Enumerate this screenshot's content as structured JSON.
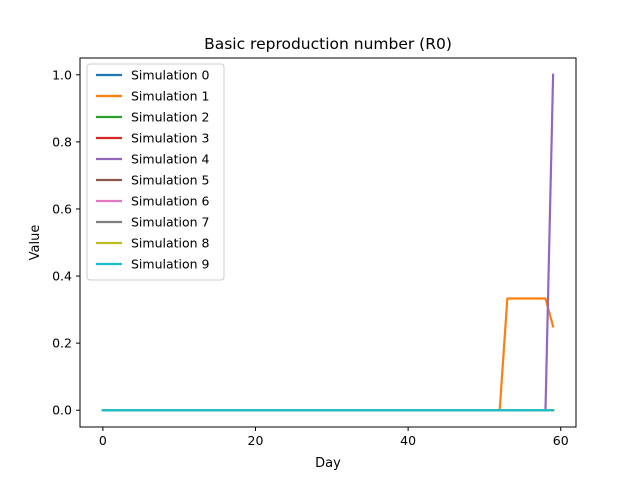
{
  "chart_data": {
    "type": "line",
    "title": "Basic reproduction number (R0)",
    "xlabel": "Day",
    "ylabel": "Value",
    "xlim": [
      -3,
      62
    ],
    "ylim": [
      -0.05,
      1.05
    ],
    "xticks": [
      0,
      20,
      40,
      60
    ],
    "xtick_labels": [
      "0",
      "20",
      "40",
      "60"
    ],
    "yticks": [
      0.0,
      0.2,
      0.4,
      0.6,
      0.8,
      1.0
    ],
    "ytick_labels": [
      "0.0",
      "0.2",
      "0.4",
      "0.6",
      "0.8",
      "1.0"
    ],
    "grid": false,
    "legend_position": "top-left",
    "series": [
      {
        "name": "Simulation 0",
        "color": "#1f77b4",
        "x": [
          0,
          59
        ],
        "y": [
          0,
          0
        ]
      },
      {
        "name": "Simulation 1",
        "color": "#ff7f0e",
        "x": [
          0,
          52,
          53,
          58,
          59
        ],
        "y": [
          0,
          0,
          0.333,
          0.333,
          0.25
        ]
      },
      {
        "name": "Simulation 2",
        "color": "#2ca02c",
        "x": [
          0,
          59
        ],
        "y": [
          0,
          0
        ]
      },
      {
        "name": "Simulation 3",
        "color": "#d62728",
        "x": [
          0,
          59
        ],
        "y": [
          0,
          0
        ]
      },
      {
        "name": "Simulation 4",
        "color": "#9467bd",
        "x": [
          0,
          58,
          59
        ],
        "y": [
          0,
          0,
          1.0
        ]
      },
      {
        "name": "Simulation 5",
        "color": "#8c564b",
        "x": [
          0,
          59
        ],
        "y": [
          0,
          0
        ]
      },
      {
        "name": "Simulation 6",
        "color": "#e377c2",
        "x": [
          0,
          59
        ],
        "y": [
          0,
          0
        ]
      },
      {
        "name": "Simulation 7",
        "color": "#7f7f7f",
        "x": [
          0,
          59
        ],
        "y": [
          0,
          0
        ]
      },
      {
        "name": "Simulation 8",
        "color": "#bcbd22",
        "x": [
          0,
          59
        ],
        "y": [
          0,
          0
        ]
      },
      {
        "name": "Simulation 9",
        "color": "#17becf",
        "x": [
          0,
          59
        ],
        "y": [
          0,
          0
        ]
      }
    ]
  }
}
